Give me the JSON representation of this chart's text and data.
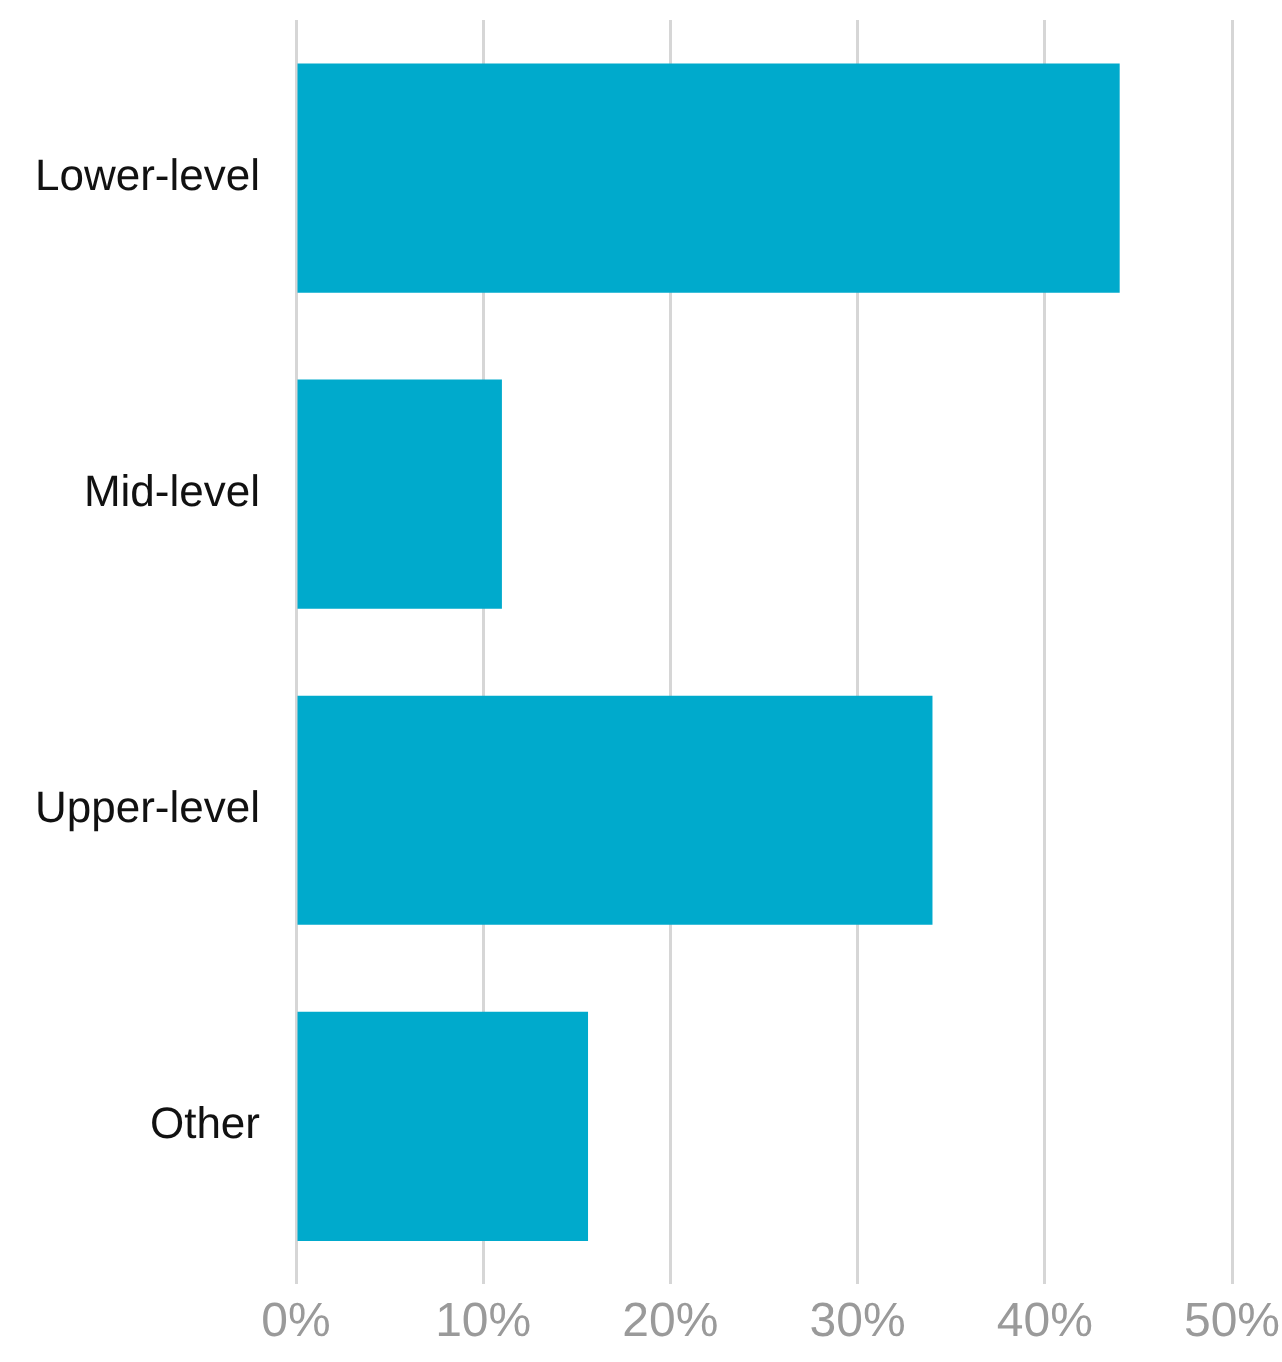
{
  "chart_data": {
    "type": "bar",
    "orientation": "horizontal",
    "categories": [
      "Lower-level",
      "Mid-level",
      "Upper-level",
      "Other"
    ],
    "values": [
      44,
      11,
      34,
      15.6
    ],
    "color": "#00aacc",
    "xlim": [
      0,
      50
    ],
    "xticks": [
      {
        "value": 0,
        "label": "0%"
      },
      {
        "value": 10,
        "label": "10%"
      },
      {
        "value": 20,
        "label": "20%"
      },
      {
        "value": 30,
        "label": "30%"
      },
      {
        "value": 40,
        "label": "40%"
      },
      {
        "value": 50,
        "label": "50%"
      }
    ],
    "grid": "x"
  }
}
